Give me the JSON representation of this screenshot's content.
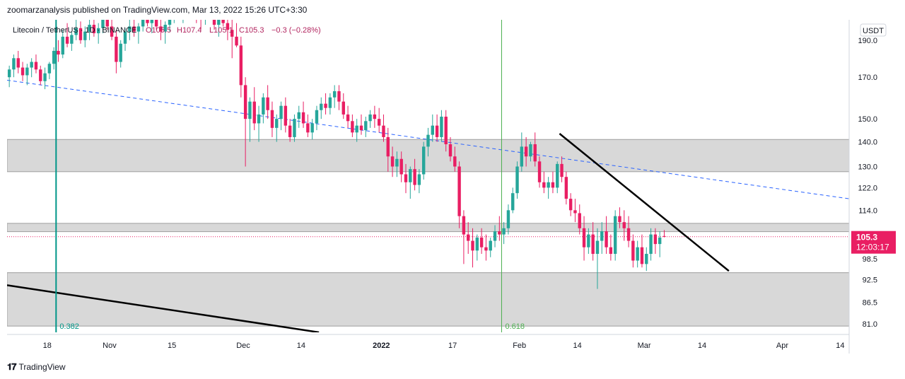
{
  "header": {
    "published_line": "zoomarzanalysis published on TradingView.com, Mar 13, 2022 15:26 UTC+3:30"
  },
  "brand": {
    "logo_icon": "tradingview-logo-icon",
    "name": "TradingView"
  },
  "legend": {
    "symbol": "Litecoin / TetherUS · 1D · BINANCE",
    "open": "O105.5",
    "high": "H107.4",
    "low": "L105.1",
    "close": "C105.3",
    "change": "−0.3 (−0.28%)"
  },
  "currency_badge": "USDT",
  "price_badge": {
    "price": "105.3",
    "countdown": "12:03:17"
  },
  "colors": {
    "up": "#26a69a",
    "down": "#e91e63",
    "zone": "#d1d1d1",
    "trend_dashed": "#2962ff",
    "fib_teal": "#009688",
    "fib_green": "#4caf50",
    "badge": "#e91e63"
  },
  "chart_data": {
    "type": "candlestick",
    "symbol": "LTCUSDT",
    "y_scale": "log",
    "ylim": [
      79,
      202
    ],
    "x_range": [
      "2021-10-09",
      "2022-04-16"
    ],
    "y_ticks": [
      190.0,
      170.0,
      150.0,
      140.0,
      130.0,
      122.0,
      114.0,
      98.5,
      92.5,
      86.5,
      81.0
    ],
    "x_ticks": [
      {
        "date": "2021-10-18",
        "label": "18"
      },
      {
        "date": "2021-11-01",
        "label": "Nov"
      },
      {
        "date": "2021-11-15",
        "label": "15"
      },
      {
        "date": "2021-12-01",
        "label": "Dec"
      },
      {
        "date": "2021-12-14",
        "label": "14"
      },
      {
        "date": "2022-01-01",
        "label": "2022"
      },
      {
        "date": "2022-01-17",
        "label": "17"
      },
      {
        "date": "2022-02-01",
        "label": "Feb"
      },
      {
        "date": "2022-02-14",
        "label": "14"
      },
      {
        "date": "2022-03-01",
        "label": "Mar"
      },
      {
        "date": "2022-03-14",
        "label": "14"
      },
      {
        "date": "2022-04-01",
        "label": "Apr"
      },
      {
        "date": "2022-04-14",
        "label": "14"
      }
    ],
    "start_date": "2021-10-09",
    "candles": [
      [
        170,
        176,
        165,
        174
      ],
      [
        174,
        182,
        170,
        180
      ],
      [
        180,
        184,
        172,
        175
      ],
      [
        175,
        178,
        168,
        171
      ],
      [
        171,
        177,
        166,
        175
      ],
      [
        175,
        180,
        170,
        178
      ],
      [
        178,
        182,
        172,
        174
      ],
      [
        174,
        176,
        166,
        168
      ],
      [
        168,
        175,
        164,
        172
      ],
      [
        172,
        178,
        169,
        177
      ],
      [
        177,
        186,
        174,
        184
      ],
      [
        184,
        190,
        178,
        182
      ],
      [
        182,
        196,
        180,
        192
      ],
      [
        192,
        200,
        186,
        188
      ],
      [
        188,
        195,
        184,
        193
      ],
      [
        193,
        202,
        190,
        197
      ],
      [
        197,
        201,
        188,
        190
      ],
      [
        190,
        198,
        186,
        195
      ],
      [
        195,
        204,
        190,
        199
      ],
      [
        199,
        205,
        192,
        194
      ],
      [
        194,
        200,
        188,
        197
      ],
      [
        197,
        206,
        194,
        202
      ],
      [
        202,
        208,
        196,
        198
      ],
      [
        198,
        203,
        190,
        192
      ],
      [
        192,
        196,
        172,
        178
      ],
      [
        178,
        190,
        175,
        188
      ],
      [
        188,
        197,
        184,
        195
      ],
      [
        195,
        202,
        190,
        198
      ],
      [
        198,
        204,
        192,
        195
      ],
      [
        195,
        200,
        188,
        198
      ],
      [
        198,
        206,
        195,
        204
      ],
      [
        204,
        210,
        198,
        200
      ],
      [
        200,
        206,
        194,
        203
      ],
      [
        203,
        208,
        196,
        198
      ],
      [
        198,
        204,
        190,
        195
      ],
      [
        195,
        201,
        188,
        199
      ],
      [
        199,
        207,
        195,
        205
      ],
      [
        205,
        212,
        200,
        208
      ],
      [
        208,
        214,
        202,
        206
      ],
      [
        206,
        213,
        200,
        210
      ],
      [
        210,
        216,
        204,
        212
      ],
      [
        212,
        218,
        206,
        209
      ],
      [
        209,
        215,
        200,
        205
      ],
      [
        205,
        210,
        196,
        203
      ],
      [
        203,
        210,
        199,
        207
      ],
      [
        207,
        214,
        203,
        210
      ],
      [
        210,
        216,
        196,
        199
      ],
      [
        199,
        212,
        192,
        208
      ],
      [
        208,
        212,
        198,
        200
      ],
      [
        200,
        206,
        190,
        196
      ],
      [
        196,
        204,
        180,
        192
      ],
      [
        192,
        200,
        186,
        187
      ],
      [
        187,
        192,
        160,
        166
      ],
      [
        166,
        170,
        130,
        150
      ],
      [
        150,
        160,
        140,
        158
      ],
      [
        158,
        165,
        145,
        148
      ],
      [
        148,
        156,
        140,
        152
      ],
      [
        152,
        162,
        148,
        160
      ],
      [
        160,
        166,
        150,
        154
      ],
      [
        154,
        158,
        142,
        146
      ],
      [
        146,
        152,
        140,
        150
      ],
      [
        150,
        158,
        145,
        156
      ],
      [
        156,
        160,
        144,
        147
      ],
      [
        147,
        150,
        140,
        142
      ],
      [
        142,
        152,
        140,
        150
      ],
      [
        150,
        156,
        146,
        153
      ],
      [
        153,
        158,
        146,
        148
      ],
      [
        148,
        152,
        142,
        144
      ],
      [
        144,
        150,
        141,
        148
      ],
      [
        148,
        156,
        145,
        154
      ],
      [
        154,
        160,
        150,
        157
      ],
      [
        157,
        162,
        152,
        155
      ],
      [
        155,
        162,
        152,
        160
      ],
      [
        160,
        166,
        155,
        163
      ],
      [
        163,
        166,
        154,
        158
      ],
      [
        158,
        162,
        150,
        152
      ],
      [
        152,
        156,
        146,
        149
      ],
      [
        149,
        152,
        142,
        144
      ],
      [
        144,
        150,
        140,
        147
      ],
      [
        147,
        152,
        143,
        145
      ],
      [
        145,
        151,
        142,
        149
      ],
      [
        149,
        154,
        146,
        152
      ],
      [
        152,
        156,
        146,
        150
      ],
      [
        150,
        155,
        144,
        147
      ],
      [
        147,
        152,
        140,
        142
      ],
      [
        142,
        146,
        128,
        134
      ],
      [
        134,
        138,
        126,
        130
      ],
      [
        130,
        136,
        126,
        133
      ],
      [
        133,
        136,
        124,
        127
      ],
      [
        127,
        131,
        120,
        124
      ],
      [
        124,
        130,
        118,
        129
      ],
      [
        129,
        133,
        121,
        123
      ],
      [
        123,
        129,
        120,
        127
      ],
      [
        127,
        140,
        125,
        138
      ],
      [
        138,
        146,
        134,
        143
      ],
      [
        143,
        152,
        140,
        147
      ],
      [
        147,
        152,
        140,
        142
      ],
      [
        142,
        154,
        140,
        151
      ],
      [
        151,
        154,
        136,
        139
      ],
      [
        139,
        142,
        132,
        134
      ],
      [
        134,
        138,
        128,
        130
      ],
      [
        130,
        132,
        108,
        112
      ],
      [
        112,
        114,
        97,
        106
      ],
      [
        106,
        110,
        100,
        104
      ],
      [
        104,
        108,
        96,
        101
      ],
      [
        101,
        106,
        98,
        105
      ],
      [
        105,
        108,
        100,
        102
      ],
      [
        102,
        106,
        98,
        101
      ],
      [
        101,
        105,
        99,
        104
      ],
      [
        104,
        109,
        102,
        107
      ],
      [
        107,
        112,
        104,
        106
      ],
      [
        106,
        110,
        103,
        108
      ],
      [
        108,
        116,
        106,
        114
      ],
      [
        114,
        122,
        113,
        120
      ],
      [
        120,
        132,
        118,
        130
      ],
      [
        130,
        144,
        128,
        138
      ],
      [
        138,
        142,
        130,
        134
      ],
      [
        134,
        140,
        132,
        139
      ],
      [
        139,
        144,
        130,
        132
      ],
      [
        132,
        134,
        122,
        124
      ],
      [
        124,
        128,
        120,
        122
      ],
      [
        122,
        126,
        118,
        124
      ],
      [
        124,
        128,
        120,
        122
      ],
      [
        122,
        132,
        120,
        131
      ],
      [
        131,
        134,
        124,
        126
      ],
      [
        126,
        128,
        116,
        118
      ],
      [
        118,
        120,
        112,
        114
      ],
      [
        114,
        118,
        110,
        113
      ],
      [
        113,
        116,
        106,
        108
      ],
      [
        108,
        112,
        98,
        102
      ],
      [
        102,
        108,
        100,
        106
      ],
      [
        106,
        110,
        98,
        100
      ],
      [
        100,
        108,
        90,
        104
      ],
      [
        104,
        110,
        100,
        107
      ],
      [
        107,
        112,
        100,
        102
      ],
      [
        102,
        106,
        98,
        100
      ],
      [
        100,
        114,
        98,
        112
      ],
      [
        112,
        115,
        108,
        110
      ],
      [
        110,
        114,
        104,
        108
      ],
      [
        108,
        112,
        102,
        104
      ],
      [
        104,
        106,
        96,
        98
      ],
      [
        98,
        104,
        96,
        102
      ],
      [
        102,
        106,
        96,
        97
      ],
      [
        97,
        102,
        95,
        100
      ],
      [
        100,
        108,
        98,
        106
      ],
      [
        106,
        108,
        100,
        103
      ],
      [
        103,
        107,
        99,
        105
      ],
      [
        105.5,
        107.4,
        105.1,
        105.3
      ]
    ],
    "zones": [
      {
        "from": 128.0,
        "to": 141.0
      },
      {
        "from": 106.9,
        "to": 109.6
      },
      {
        "from": 80.5,
        "to": 94.5
      }
    ],
    "trend_lines": [
      {
        "style": "dashed",
        "points": [
          [
            "2021-10-09",
            168.5
          ],
          [
            "2022-04-16",
            118.0
          ]
        ]
      },
      {
        "style": "solid",
        "points": [
          [
            "2022-02-10",
            143.5
          ],
          [
            "2022-03-20",
            95.0
          ]
        ]
      },
      {
        "style": "solid",
        "points": [
          [
            "2021-10-09",
            91.0
          ],
          [
            "2021-12-18",
            79.0
          ]
        ]
      }
    ],
    "fib_lines": [
      {
        "date": "2021-10-20",
        "label": "0.382",
        "color": "#009688"
      },
      {
        "date": "2022-01-28",
        "label": "0.618",
        "color": "#4caf50"
      }
    ],
    "current_price": 105.3
  }
}
